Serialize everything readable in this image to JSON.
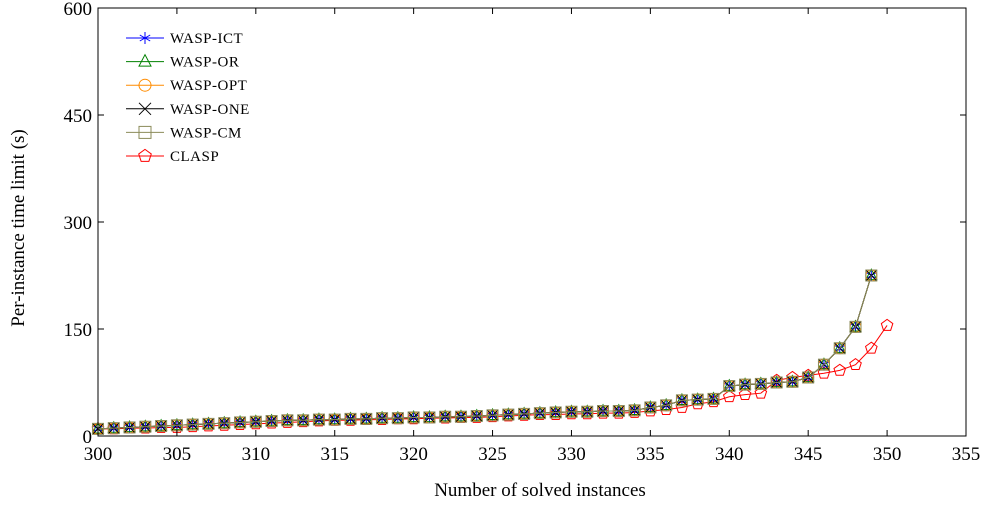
{
  "chart_data": {
    "type": "line",
    "xlabel": "Number of solved instances",
    "ylabel": "Per-instance time limit (s)",
    "xlim": [
      300,
      355
    ],
    "ylim": [
      0,
      600
    ],
    "xticks": [
      300,
      305,
      310,
      315,
      320,
      325,
      330,
      335,
      340,
      345,
      350,
      355
    ],
    "yticks": [
      0,
      150,
      300,
      450,
      600
    ],
    "x_tick_labels": [
      "300",
      "305",
      "310",
      "315",
      "320",
      "325",
      "330",
      "335",
      "340",
      "345",
      "350",
      "355"
    ],
    "y_tick_labels": [
      "0",
      "150",
      "300",
      "450",
      "600"
    ],
    "grid": false,
    "legend_position": "top-left",
    "series": [
      {
        "name": "WASP-ICT",
        "color": "#0000ff",
        "marker": "asterisk",
        "x": [
          300,
          301,
          302,
          303,
          304,
          305,
          306,
          307,
          308,
          309,
          310,
          311,
          312,
          313,
          314,
          315,
          316,
          317,
          318,
          319,
          320,
          321,
          322,
          323,
          324,
          325,
          326,
          327,
          328,
          329,
          330,
          331,
          332,
          333,
          334,
          335,
          336,
          337,
          338,
          339,
          340,
          341,
          342,
          343,
          344,
          345,
          346,
          347,
          348,
          349
        ],
        "y": [
          10,
          11,
          12,
          13,
          14,
          15,
          16,
          17,
          18,
          19,
          20,
          21,
          22,
          22,
          23,
          23,
          24,
          24,
          25,
          25,
          26,
          26,
          27,
          27,
          28,
          29,
          30,
          31,
          32,
          33,
          34,
          34,
          35,
          35,
          36,
          40,
          43,
          50,
          51,
          52,
          70,
          72,
          73,
          75,
          76,
          82,
          100,
          123,
          153,
          225
        ]
      },
      {
        "name": "WASP-OR",
        "color": "#008000",
        "marker": "triangle",
        "x": [
          300,
          301,
          302,
          303,
          304,
          305,
          306,
          307,
          308,
          309,
          310,
          311,
          312,
          313,
          314,
          315,
          316,
          317,
          318,
          319,
          320,
          321,
          322,
          323,
          324,
          325,
          326,
          327,
          328,
          329,
          330,
          331,
          332,
          333,
          334,
          335,
          336,
          337,
          338,
          339,
          340,
          341,
          342,
          343,
          344,
          345,
          346,
          347,
          348,
          349
        ],
        "y": [
          10,
          11,
          12,
          13,
          14,
          15,
          16,
          17,
          18,
          19,
          20,
          21,
          22,
          22,
          23,
          23,
          24,
          24,
          25,
          25,
          26,
          26,
          27,
          27,
          28,
          29,
          30,
          31,
          32,
          33,
          34,
          34,
          35,
          35,
          36,
          40,
          43,
          50,
          51,
          52,
          70,
          72,
          73,
          75,
          76,
          82,
          100,
          123,
          153,
          225
        ]
      },
      {
        "name": "WASP-OPT",
        "color": "#ff8c00",
        "marker": "circle",
        "x": [
          300,
          301,
          302,
          303,
          304,
          305,
          306,
          307,
          308,
          309,
          310,
          311,
          312,
          313,
          314,
          315,
          316,
          317,
          318,
          319,
          320,
          321,
          322,
          323,
          324,
          325,
          326,
          327,
          328,
          329,
          330,
          331,
          332,
          333,
          334,
          335,
          336,
          337,
          338,
          339,
          340,
          341,
          342,
          343,
          344,
          345,
          346,
          347,
          348,
          349
        ],
        "y": [
          10,
          11,
          12,
          13,
          14,
          15,
          16,
          17,
          18,
          19,
          20,
          21,
          22,
          22,
          23,
          23,
          24,
          24,
          25,
          25,
          26,
          26,
          27,
          27,
          28,
          29,
          30,
          31,
          32,
          33,
          34,
          34,
          35,
          35,
          36,
          40,
          43,
          50,
          51,
          52,
          70,
          72,
          73,
          75,
          76,
          82,
          100,
          123,
          153,
          225
        ]
      },
      {
        "name": "WASP-ONE",
        "color": "#000000",
        "marker": "x",
        "x": [
          300,
          301,
          302,
          303,
          304,
          305,
          306,
          307,
          308,
          309,
          310,
          311,
          312,
          313,
          314,
          315,
          316,
          317,
          318,
          319,
          320,
          321,
          322,
          323,
          324,
          325,
          326,
          327,
          328,
          329,
          330,
          331,
          332,
          333,
          334,
          335,
          336,
          337,
          338,
          339,
          340,
          341,
          342,
          343,
          344,
          345,
          346,
          347,
          348,
          349
        ],
        "y": [
          10,
          11,
          12,
          13,
          14,
          15,
          16,
          17,
          18,
          19,
          20,
          21,
          22,
          22,
          23,
          23,
          24,
          24,
          25,
          25,
          26,
          26,
          27,
          27,
          28,
          29,
          30,
          31,
          32,
          33,
          34,
          34,
          35,
          35,
          36,
          40,
          43,
          50,
          51,
          52,
          70,
          72,
          73,
          75,
          76,
          82,
          100,
          123,
          153,
          225
        ]
      },
      {
        "name": "WASP-CM",
        "color": "#8b8b5a",
        "marker": "square",
        "x": [
          300,
          301,
          302,
          303,
          304,
          305,
          306,
          307,
          308,
          309,
          310,
          311,
          312,
          313,
          314,
          315,
          316,
          317,
          318,
          319,
          320,
          321,
          322,
          323,
          324,
          325,
          326,
          327,
          328,
          329,
          330,
          331,
          332,
          333,
          334,
          335,
          336,
          337,
          338,
          339,
          340,
          341,
          342,
          343,
          344,
          345,
          346,
          347,
          348,
          349
        ],
        "y": [
          10,
          11,
          12,
          13,
          14,
          15,
          16,
          17,
          18,
          19,
          20,
          21,
          22,
          22,
          23,
          23,
          24,
          24,
          25,
          25,
          26,
          26,
          27,
          27,
          28,
          29,
          30,
          31,
          32,
          33,
          34,
          34,
          35,
          35,
          36,
          40,
          43,
          50,
          51,
          52,
          70,
          72,
          73,
          75,
          76,
          82,
          100,
          123,
          153,
          225
        ]
      },
      {
        "name": "CLASP",
        "color": "#ff0000",
        "marker": "pentagon",
        "x": [
          300,
          301,
          302,
          303,
          304,
          305,
          306,
          307,
          308,
          309,
          310,
          311,
          312,
          313,
          314,
          315,
          316,
          317,
          318,
          319,
          320,
          321,
          322,
          323,
          324,
          325,
          326,
          327,
          328,
          329,
          330,
          331,
          332,
          333,
          334,
          335,
          336,
          337,
          338,
          339,
          340,
          341,
          342,
          343,
          344,
          345,
          346,
          347,
          348,
          349,
          350
        ],
        "y": [
          10,
          10,
          11,
          11,
          12,
          12,
          13,
          14,
          15,
          16,
          17,
          18,
          19,
          20,
          21,
          22,
          22,
          23,
          23,
          24,
          24,
          25,
          25,
          26,
          26,
          27,
          28,
          29,
          30,
          30,
          31,
          31,
          32,
          32,
          33,
          35,
          37,
          40,
          45,
          48,
          55,
          58,
          60,
          78,
          82,
          85,
          88,
          92,
          100,
          123,
          155
        ]
      }
    ]
  }
}
